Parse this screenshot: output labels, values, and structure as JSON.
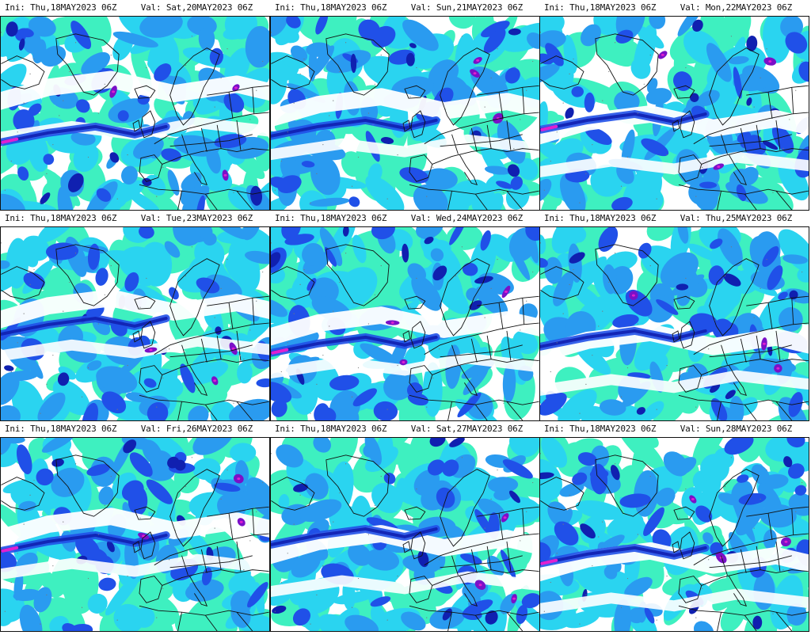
{
  "panels": [
    {
      "ini": "Ini: Thu,18MAY2023 06Z",
      "valid": "Val: Sat,20MAY2023 06Z",
      "variant": 0
    },
    {
      "ini": "Ini: Thu,18MAY2023 06Z",
      "valid": "Val: Sun,21MAY2023 06Z",
      "variant": 1
    },
    {
      "ini": "Ini: Thu,18MAY2023 06Z",
      "valid": "Val: Mon,22MAY2023 06Z",
      "variant": 2
    },
    {
      "ini": "Ini: Thu,18MAY2023 06Z",
      "valid": "Val: Tue,23MAY2023 06Z",
      "variant": 3
    },
    {
      "ini": "Ini: Thu,18MAY2023 06Z",
      "valid": "Val: Wed,24MAY2023 06Z",
      "variant": 4
    },
    {
      "ini": "Ini: Thu,18MAY2023 06Z",
      "valid": "Val: Thu,25MAY2023 06Z",
      "variant": 5
    },
    {
      "ini": "Ini: Thu,18MAY2023 06Z",
      "valid": "Val: Fri,26MAY2023 06Z",
      "variant": 6
    },
    {
      "ini": "Ini: Thu,18MAY2023 06Z",
      "valid": "Val: Sat,27MAY2023 06Z",
      "variant": 7
    },
    {
      "ini": "Ini: Thu,18MAY2023 06Z",
      "valid": "Val: Sun,28MAY2023 06Z",
      "variant": 8
    }
  ],
  "colors": {
    "light": "#3ef0c0",
    "cyan": "#2ad4f0",
    "mid": "#2a9bf0",
    "blue": "#2050e8",
    "dark": "#1020b0",
    "purple": "#7a10c8",
    "magenta": "#e020d0",
    "coast": "#111111"
  }
}
